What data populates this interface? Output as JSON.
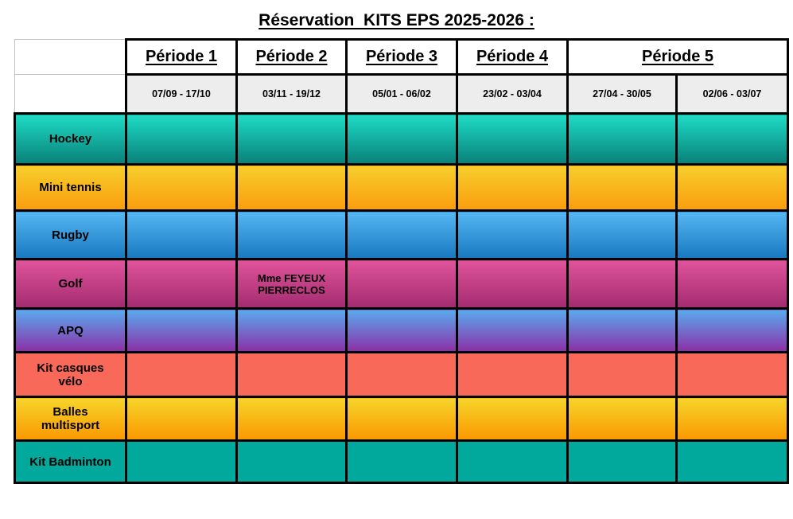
{
  "title": "Réservation  KITS EPS 2025-2026 :",
  "colors": {
    "grid_border": "#000000",
    "period_header_bg": "#ffffff",
    "date_header_bg": "#ededed"
  },
  "table": {
    "periods": [
      {
        "label": "Période 1",
        "dates": [
          "07/09 - 17/10"
        ]
      },
      {
        "label": "Période 2",
        "dates": [
          "03/11 - 19/12"
        ]
      },
      {
        "label": "Période 3",
        "dates": [
          "05/01 - 06/02"
        ]
      },
      {
        "label": "Période 4",
        "dates": [
          "23/02 - 03/04"
        ]
      },
      {
        "label": "Période 5",
        "dates": [
          "27/04 - 30/05",
          "02/06 - 03/07"
        ]
      }
    ],
    "rows": [
      {
        "label": "Hockey",
        "color_top": "#1edcc6",
        "color_bottom": "#098078",
        "cells": [
          "",
          "",
          "",
          "",
          "",
          ""
        ]
      },
      {
        "label": "Mini tennis",
        "color_top": "#f7ce2b",
        "color_bottom": "#fa9d0e",
        "cells": [
          "",
          "",
          "",
          "",
          "",
          ""
        ]
      },
      {
        "label": "Rugby",
        "color_top": "#55b7f2",
        "color_bottom": "#1878c0",
        "cells": [
          "",
          "",
          "",
          "",
          "",
          ""
        ]
      },
      {
        "label": "Golf",
        "color_top": "#e0539a",
        "color_bottom": "#a32b70",
        "cells": [
          "",
          "Mme FEYEUX PIERRECLOS",
          "",
          "",
          "",
          ""
        ]
      },
      {
        "label": "APQ",
        "color_top": "#5baaee",
        "color_bottom": "#8b30a6",
        "cells": [
          "",
          "",
          "",
          "",
          "",
          ""
        ]
      },
      {
        "label": "Kit casques vélo",
        "color_top": "#f9695a",
        "color_bottom": "#f9695a",
        "cells": [
          "",
          "",
          "",
          "",
          "",
          ""
        ]
      },
      {
        "label": "Balles multisport",
        "color_top": "#f6d52a",
        "color_bottom": "#fa9800",
        "cells": [
          "",
          "",
          "",
          "",
          "",
          ""
        ]
      },
      {
        "label": "Kit Badminton",
        "color_top": "#00a99c",
        "color_bottom": "#00a99c",
        "cells": [
          "",
          "",
          "",
          "",
          "",
          ""
        ]
      }
    ]
  }
}
